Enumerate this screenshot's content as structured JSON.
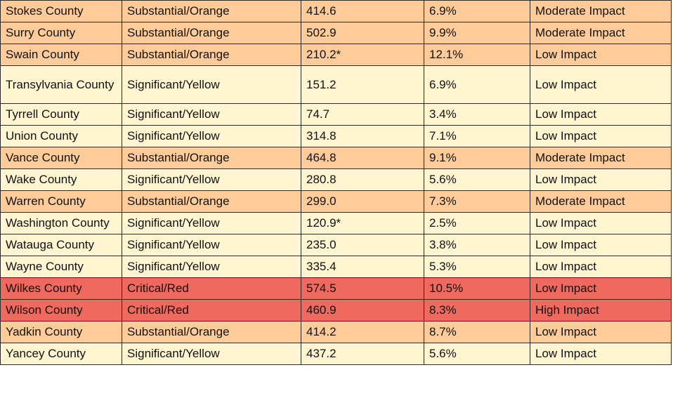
{
  "colors": {
    "yellow": "#fff5d1",
    "orange": "#ffcc99",
    "red": "#f0695e"
  },
  "rows": [
    {
      "county": "Stokes County",
      "level": "Substantial/Orange",
      "rate": "414.6",
      "percent": "6.9%",
      "impact": "Moderate Impact",
      "tier": "orange"
    },
    {
      "county": "Surry County",
      "level": "Substantial/Orange",
      "rate": "502.9",
      "percent": "9.9%",
      "impact": "Moderate Impact",
      "tier": "orange"
    },
    {
      "county": "Swain County",
      "level": "Substantial/Orange",
      "rate": "210.2*",
      "percent": "12.1%",
      "impact": "Low Impact",
      "tier": "orange"
    },
    {
      "county": "Transylvania County",
      "level": "Significant/Yellow",
      "rate": "151.2",
      "percent": "6.9%",
      "impact": "Low Impact",
      "tier": "yellow"
    },
    {
      "county": "Tyrrell County",
      "level": "Significant/Yellow",
      "rate": "74.7",
      "percent": "3.4%",
      "impact": "Low Impact",
      "tier": "yellow"
    },
    {
      "county": "Union County",
      "level": "Significant/Yellow",
      "rate": "314.8",
      "percent": "7.1%",
      "impact": "Low Impact",
      "tier": "yellow"
    },
    {
      "county": "Vance County",
      "level": "Substantial/Orange",
      "rate": "464.8",
      "percent": "9.1%",
      "impact": "Moderate Impact",
      "tier": "orange"
    },
    {
      "county": "Wake County",
      "level": "Significant/Yellow",
      "rate": "280.8",
      "percent": "5.6%",
      "impact": "Low Impact",
      "tier": "yellow"
    },
    {
      "county": "Warren County",
      "level": "Substantial/Orange",
      "rate": "299.0",
      "percent": "7.3%",
      "impact": "Moderate Impact",
      "tier": "orange"
    },
    {
      "county": "Washington County",
      "level": "Significant/Yellow",
      "rate": "120.9*",
      "percent": "2.5%",
      "impact": "Low Impact",
      "tier": "yellow"
    },
    {
      "county": "Watauga County",
      "level": "Significant/Yellow",
      "rate": "235.0",
      "percent": "3.8%",
      "impact": "Low Impact",
      "tier": "yellow"
    },
    {
      "county": "Wayne County",
      "level": "Significant/Yellow",
      "rate": "335.4",
      "percent": "5.3%",
      "impact": "Low Impact",
      "tier": "yellow"
    },
    {
      "county": "Wilkes County",
      "level": "Critical/Red",
      "rate": "574.5",
      "percent": "10.5%",
      "impact": "Low Impact",
      "tier": "red"
    },
    {
      "county": "Wilson County",
      "level": "Critical/Red",
      "rate": "460.9",
      "percent": "8.3%",
      "impact": "High Impact",
      "tier": "red"
    },
    {
      "county": "Yadkin County",
      "level": "Substantial/Orange",
      "rate": "414.2",
      "percent": "8.7%",
      "impact": "Low Impact",
      "tier": "orange"
    },
    {
      "county": "Yancey County",
      "level": "Significant/Yellow",
      "rate": "437.2",
      "percent": "5.6%",
      "impact": "Low Impact",
      "tier": "yellow"
    }
  ]
}
